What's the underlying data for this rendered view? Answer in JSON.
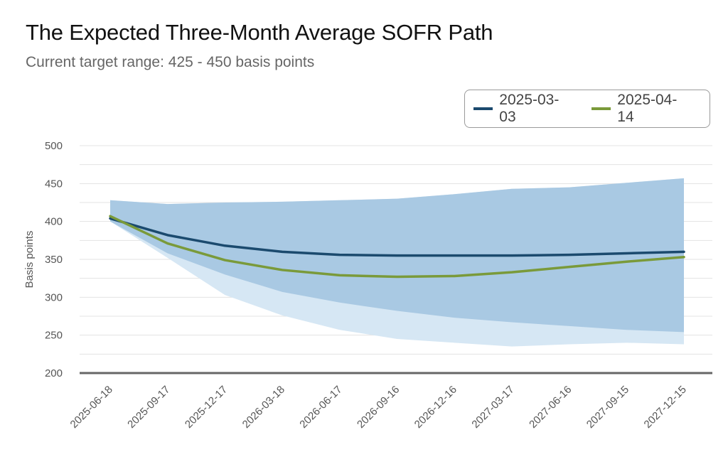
{
  "header": {
    "title": "The Expected Three-Month Average SOFR Path",
    "subtitle": "Current target range: 425 - 450 basis points"
  },
  "colors": {
    "series_1": "#1b4a6e",
    "series_2": "#7a9a3a",
    "band_inner": "#a9c9e3",
    "band_outer": "#d6e7f4",
    "grid": "#e3e3e3",
    "baseline": "#666666"
  },
  "chart_data": {
    "type": "line",
    "ylabel": "Basis points",
    "ylim": [
      200,
      500
    ],
    "yticks": [
      200,
      250,
      300,
      350,
      400,
      450,
      500
    ],
    "grid": true,
    "legend": "top-right",
    "categories": [
      "2025-06-18",
      "2025-09-17",
      "2025-12-17",
      "2026-03-18",
      "2026-06-17",
      "2026-09-16",
      "2026-12-16",
      "2027-03-17",
      "2027-06-16",
      "2027-09-15",
      "2027-12-15"
    ],
    "series": [
      {
        "name": "2025-03-03",
        "values": [
          404,
          382,
          368,
          360,
          356,
          355,
          355,
          355,
          356,
          358,
          360
        ]
      },
      {
        "name": "2025-04-14",
        "values": [
          407,
          371,
          349,
          336,
          329,
          327,
          328,
          333,
          340,
          347,
          353
        ]
      }
    ],
    "bands": [
      {
        "lower": [
          400,
          352,
          303,
          276,
          257,
          245,
          240,
          235,
          238,
          240,
          238
        ],
        "upper": [
          428,
          423,
          425,
          426,
          428,
          430,
          436,
          443,
          445,
          451,
          457
        ]
      },
      {
        "lower": [
          400,
          358,
          330,
          307,
          293,
          282,
          273,
          267,
          262,
          257,
          254
        ],
        "upper": [
          428,
          423,
          425,
          426,
          428,
          430,
          436,
          443,
          445,
          451,
          457
        ]
      }
    ]
  }
}
